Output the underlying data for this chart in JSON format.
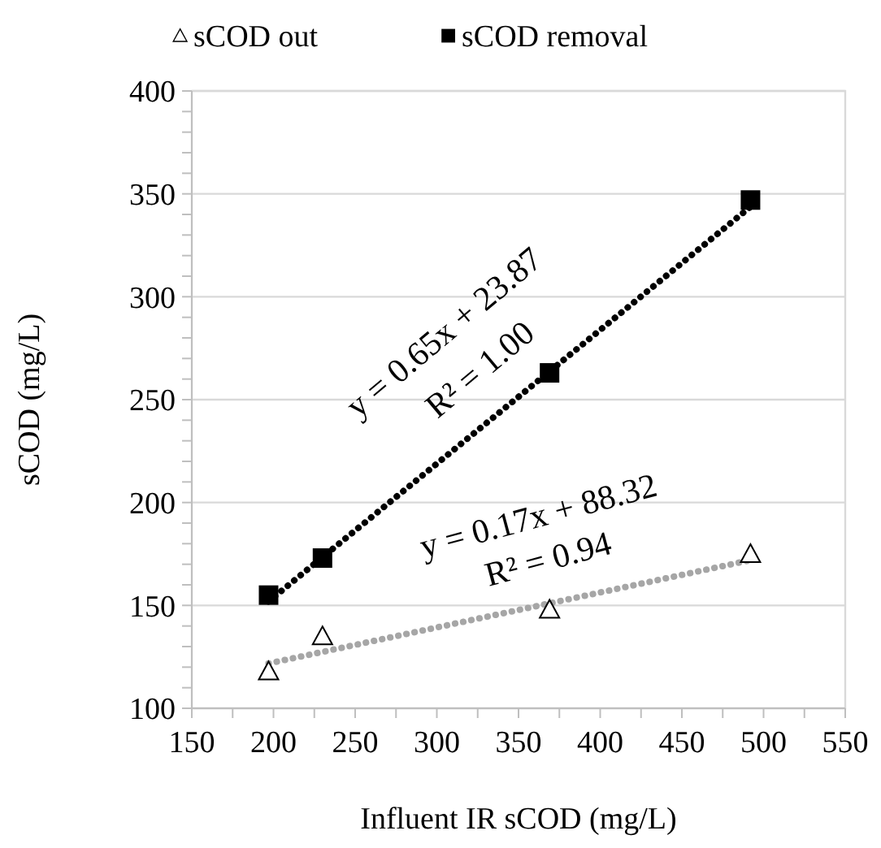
{
  "chart_data": {
    "type": "scatter",
    "xlabel": "Influent IR sCOD (mg/L)",
    "ylabel": "sCOD (mg/L)",
    "x": [
      197,
      230,
      369,
      492
    ],
    "series": [
      {
        "name": "sCOD out",
        "type": "scatter",
        "marker": "triangle",
        "color": "#000000",
        "values": [
          118,
          135,
          148,
          175
        ]
      },
      {
        "name": "sCOD removal",
        "type": "scatter",
        "marker": "square",
        "color": "#000000",
        "values": [
          155,
          173,
          263,
          347
        ]
      },
      {
        "type": "line",
        "values": [
          151.9,
          173.4,
          263.7,
          343.7
        ],
        "color": "#000000",
        "line_style": "dotted",
        "marker": "none"
      },
      {
        "type": "line",
        "values": [
          121.8,
          127.4,
          151.0,
          172.0
        ],
        "color": "#a6a6a6",
        "line_style": "dotted",
        "marker": "none"
      }
    ],
    "xlim": [
      150,
      550
    ],
    "ylim": [
      100,
      400
    ],
    "xticks": [
      150,
      {
        "value": 175,
        "label": null
      },
      200,
      {
        "value": 225,
        "label": null
      },
      250,
      {
        "value": 275,
        "label": null
      },
      300,
      {
        "value": 325,
        "label": null
      },
      350,
      {
        "value": 375,
        "label": null
      },
      400,
      {
        "value": 425,
        "label": null
      },
      450,
      {
        "value": 475,
        "label": null
      },
      500,
      {
        "value": 525,
        "label": null
      },
      550
    ],
    "yticks": [
      100,
      {
        "value": 110,
        "label": null
      },
      {
        "value": 120,
        "label": null
      },
      {
        "value": 130,
        "label": null
      },
      {
        "value": 140,
        "label": null
      },
      150,
      {
        "value": 160,
        "label": null
      },
      {
        "value": 170,
        "label": null
      },
      {
        "value": 180,
        "label": null
      },
      {
        "value": 190,
        "label": null
      },
      200,
      {
        "value": 210,
        "label": null
      },
      {
        "value": 220,
        "label": null
      },
      {
        "value": 230,
        "label": null
      },
      {
        "value": 240,
        "label": null
      },
      250,
      {
        "value": 260,
        "label": null
      },
      {
        "value": 270,
        "label": null
      },
      {
        "value": 280,
        "label": null
      },
      {
        "value": 290,
        "label": null
      },
      300,
      {
        "value": 310,
        "label": null
      },
      {
        "value": 320,
        "label": null
      },
      {
        "value": 330,
        "label": null
      },
      {
        "value": 340,
        "label": null
      },
      350,
      {
        "value": 360,
        "label": null
      },
      {
        "value": 370,
        "label": null
      },
      {
        "value": 380,
        "label": null
      },
      {
        "value": 390,
        "label": null
      },
      400
    ],
    "grid": "y",
    "legend": "top",
    "annotations": [
      "y = 0.65x + 23.87",
      "R² = 1.00",
      "y = 0.17x + 88.32",
      "R² = 0.94"
    ]
  }
}
